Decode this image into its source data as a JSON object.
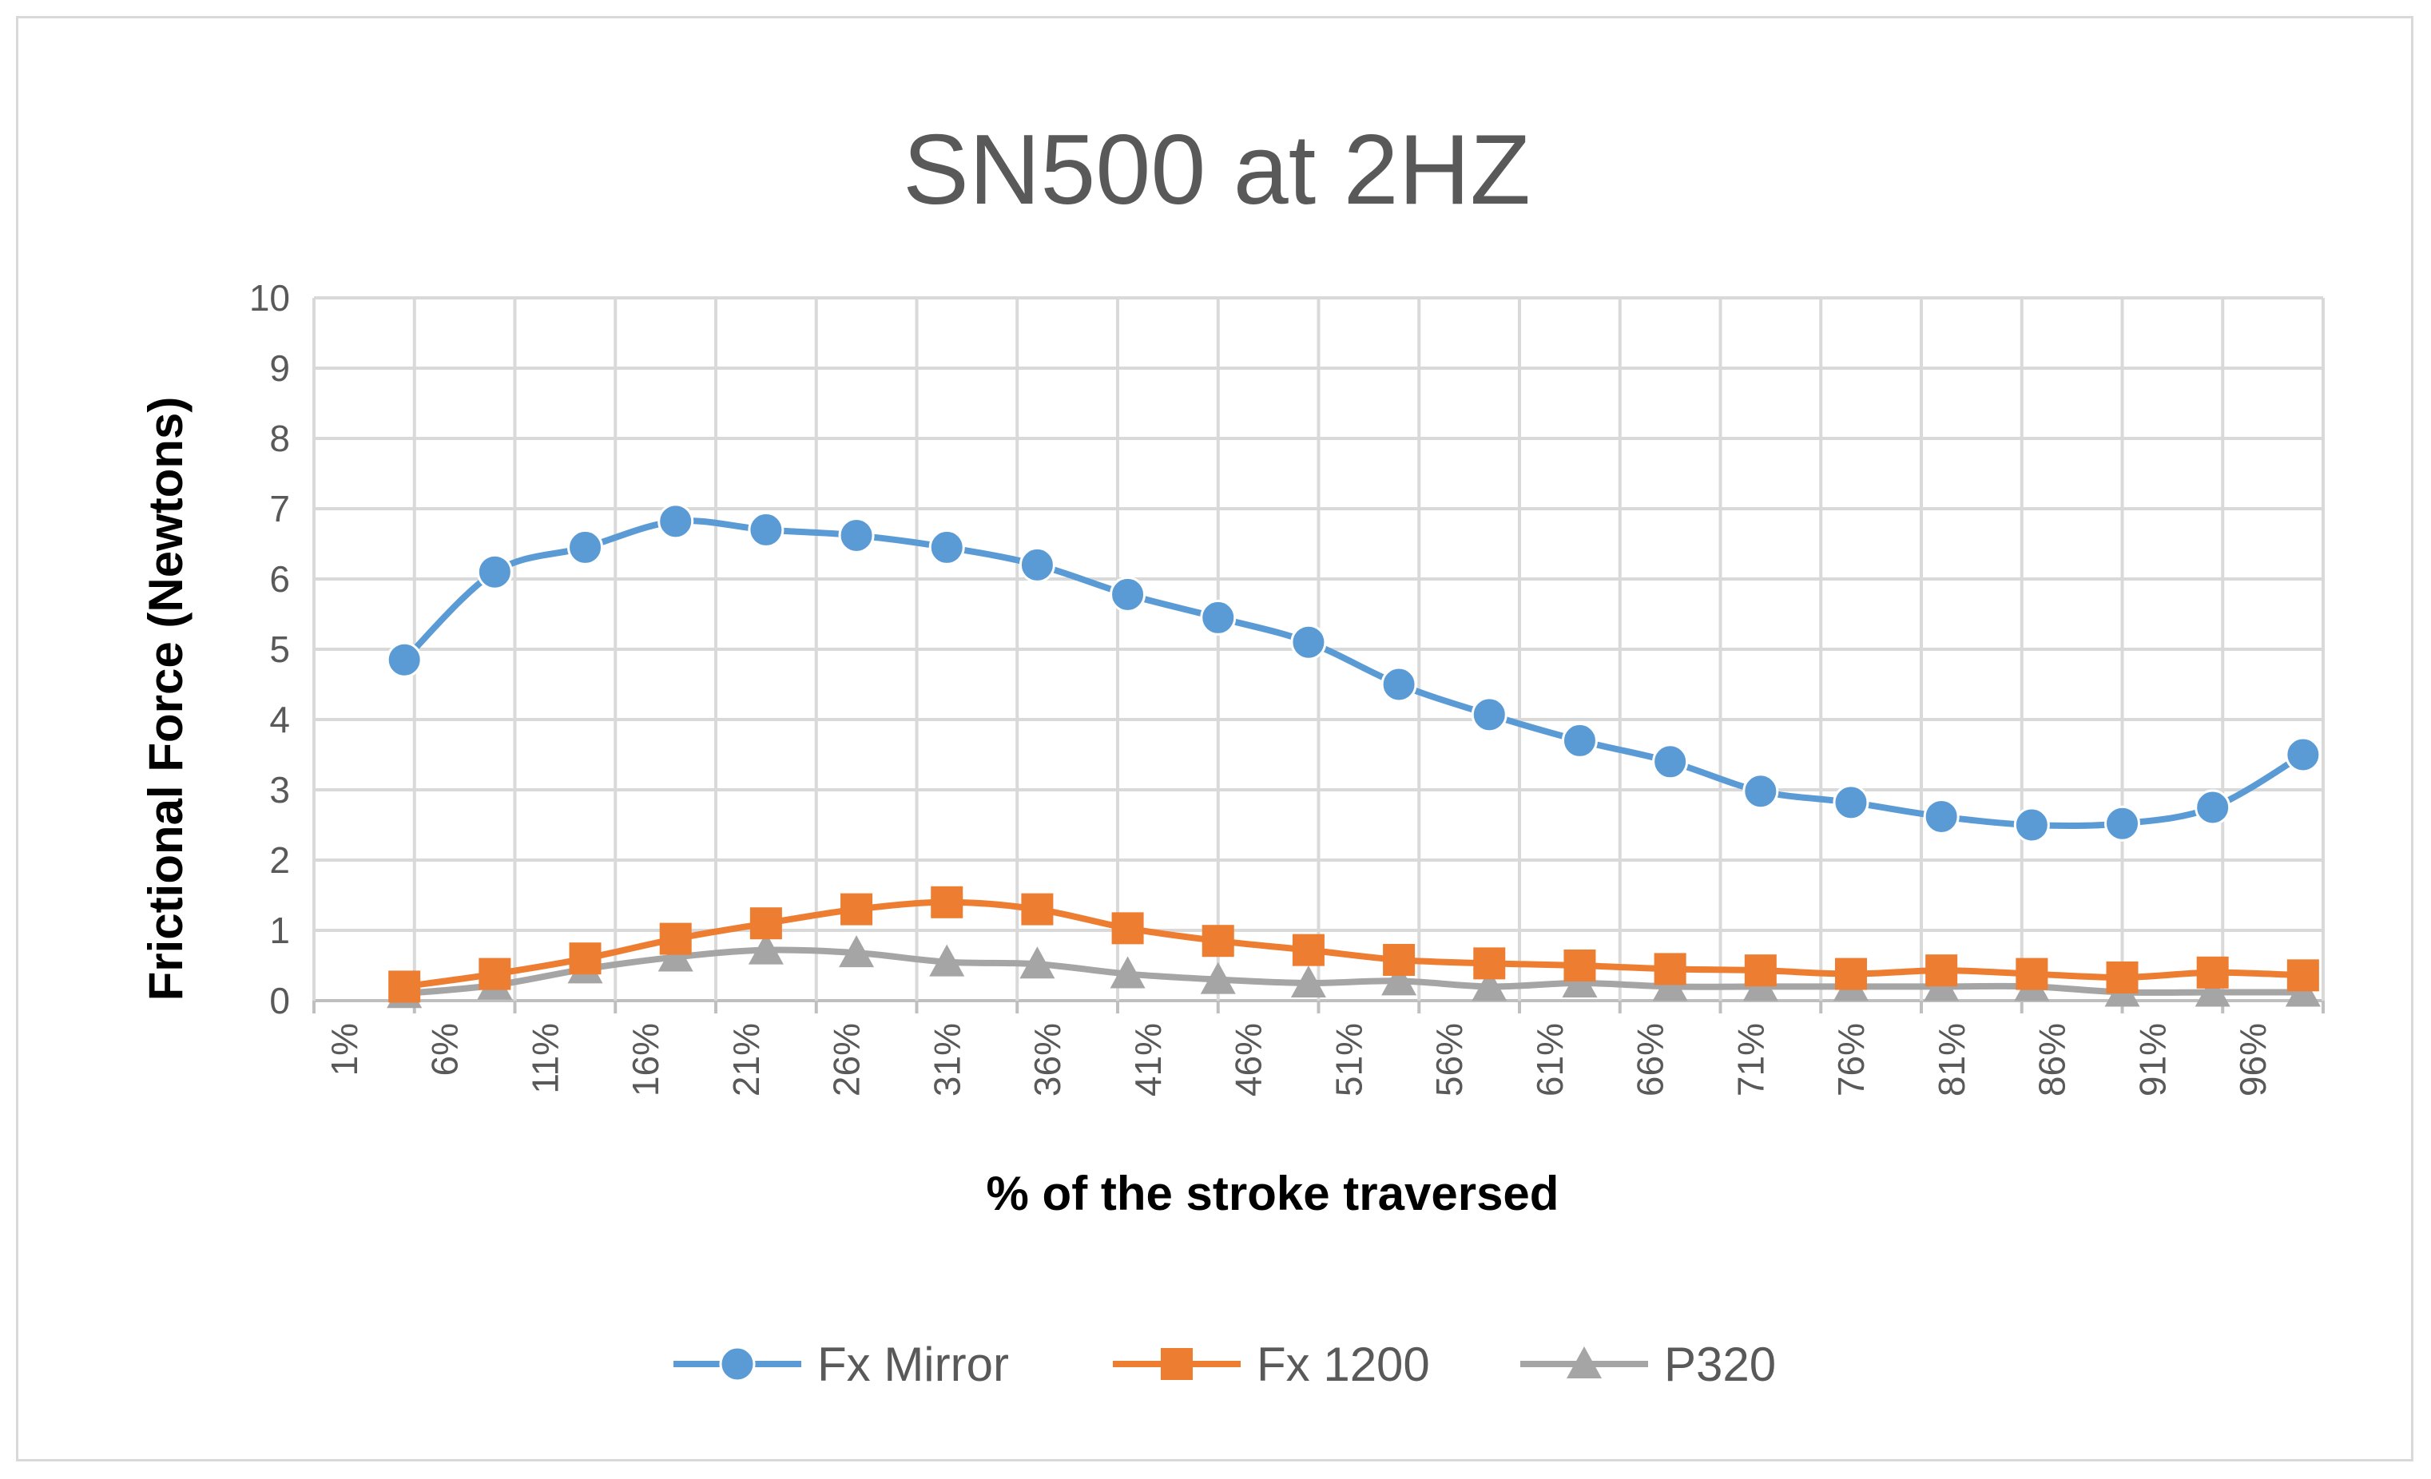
{
  "chart_data": {
    "type": "line",
    "title": "SN500 at 2HZ",
    "xlabel": "% of the stroke traversed",
    "ylabel": "Frictional Force (Newtons)",
    "ylim": [
      0,
      10
    ],
    "yticks": [
      "0",
      "1",
      "2",
      "3",
      "4",
      "5",
      "6",
      "7",
      "8",
      "9",
      "10"
    ],
    "categories": [
      "1%",
      "6%",
      "11%",
      "16%",
      "21%",
      "26%",
      "31%",
      "36%",
      "41%",
      "46%",
      "51%",
      "56%",
      "61%",
      "66%",
      "71%",
      "76%",
      "81%",
      "86%",
      "91%",
      "96%"
    ],
    "x": [
      4.5,
      9,
      13.5,
      18,
      22.5,
      27,
      31.5,
      36,
      40.5,
      45,
      49.5,
      54,
      58.5,
      63,
      67.5,
      72,
      76.5,
      81,
      85.5,
      90,
      94.5,
      99
    ],
    "grid": true,
    "legend_position": "bottom",
    "series": [
      {
        "name": "Fx Mirror",
        "color": "#5b9bd5",
        "marker": "circle",
        "values": [
          4.85,
          6.1,
          6.45,
          6.82,
          6.7,
          6.62,
          6.45,
          6.2,
          5.78,
          5.45,
          5.1,
          4.5,
          4.07,
          3.7,
          3.4,
          2.98,
          2.82,
          2.62,
          2.5,
          2.52,
          2.75,
          3.5
        ]
      },
      {
        "name": "Fx 1200",
        "color": "#ed7d31",
        "marker": "square",
        "values": [
          0.2,
          0.38,
          0.6,
          0.88,
          1.1,
          1.3,
          1.4,
          1.3,
          1.03,
          0.85,
          0.72,
          0.58,
          0.53,
          0.5,
          0.45,
          0.43,
          0.38,
          0.43,
          0.38,
          0.33,
          0.4,
          0.36
        ]
      },
      {
        "name": "P320",
        "color": "#a5a5a5",
        "marker": "triangle",
        "values": [
          0.1,
          0.22,
          0.45,
          0.62,
          0.72,
          0.68,
          0.55,
          0.52,
          0.38,
          0.3,
          0.25,
          0.28,
          0.2,
          0.25,
          0.2,
          0.2,
          0.2,
          0.2,
          0.2,
          0.12,
          0.12,
          0.12
        ]
      }
    ]
  }
}
